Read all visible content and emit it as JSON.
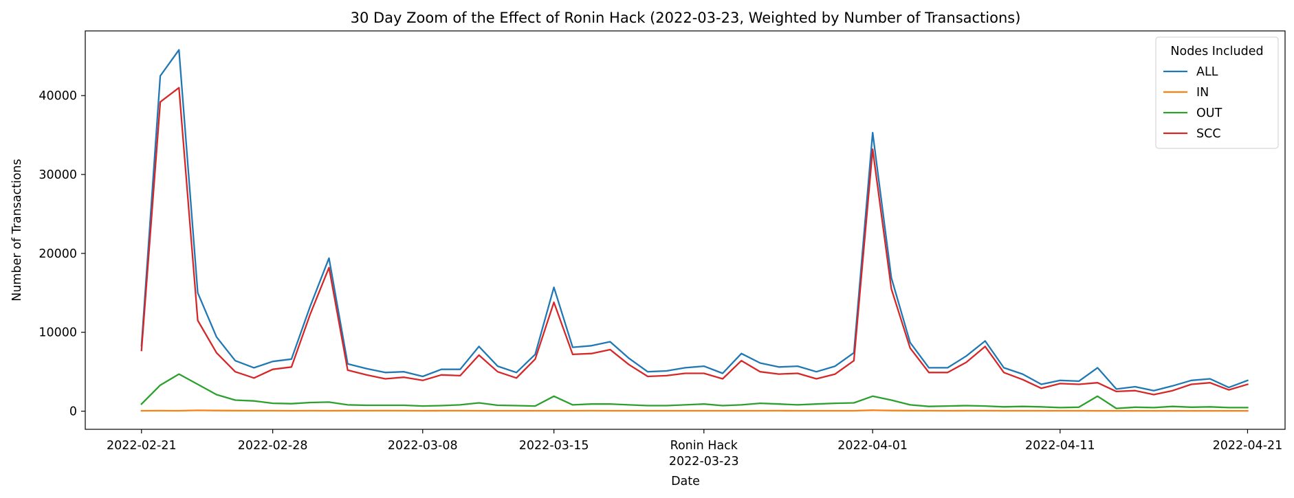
{
  "chart_data": {
    "type": "line",
    "title": "30 Day Zoom of the Effect of Ronin Hack (2022-03-23, Weighted by Number of Transactions)",
    "xlabel": "Date",
    "ylabel": "Number of Transactions",
    "x_start": "2022-02-21",
    "x_end": "2022-04-21",
    "xlim": [
      "2022-02-18",
      "2022-04-23"
    ],
    "ylim": [
      -2300,
      48200
    ],
    "grid": false,
    "x_ticks": [
      {
        "date": "2022-02-21",
        "label": "2022-02-21"
      },
      {
        "date": "2022-02-28",
        "label": "2022-02-28"
      },
      {
        "date": "2022-03-08",
        "label": "2022-03-08"
      },
      {
        "date": "2022-03-15",
        "label": "2022-03-15"
      },
      {
        "date": "2022-03-23",
        "label": "Ronin Hack",
        "label2": "2022-03-23"
      },
      {
        "date": "2022-04-01",
        "label": "2022-04-01"
      },
      {
        "date": "2022-04-11",
        "label": "2022-04-11"
      },
      {
        "date": "2022-04-21",
        "label": "2022-04-21"
      }
    ],
    "y_ticks": [
      {
        "value": 0,
        "label": "0"
      },
      {
        "value": 10000,
        "label": "10000"
      },
      {
        "value": 20000,
        "label": "20000"
      },
      {
        "value": 30000,
        "label": "30000"
      },
      {
        "value": 40000,
        "label": "40000"
      }
    ],
    "legend": {
      "title": "Nodes Included",
      "position": "upper right"
    },
    "x": [
      "2022-02-21",
      "2022-02-22",
      "2022-02-23",
      "2022-02-24",
      "2022-02-25",
      "2022-02-26",
      "2022-02-27",
      "2022-02-28",
      "2022-03-01",
      "2022-03-02",
      "2022-03-03",
      "2022-03-04",
      "2022-03-05",
      "2022-03-06",
      "2022-03-07",
      "2022-03-08",
      "2022-03-09",
      "2022-03-10",
      "2022-03-11",
      "2022-03-12",
      "2022-03-13",
      "2022-03-14",
      "2022-03-15",
      "2022-03-16",
      "2022-03-17",
      "2022-03-18",
      "2022-03-19",
      "2022-03-20",
      "2022-03-21",
      "2022-03-22",
      "2022-03-23",
      "2022-03-24",
      "2022-03-25",
      "2022-03-26",
      "2022-03-27",
      "2022-03-28",
      "2022-03-29",
      "2022-03-30",
      "2022-03-31",
      "2022-04-01",
      "2022-04-02",
      "2022-04-03",
      "2022-04-04",
      "2022-04-05",
      "2022-04-06",
      "2022-04-07",
      "2022-04-08",
      "2022-04-09",
      "2022-04-10",
      "2022-04-11",
      "2022-04-12",
      "2022-04-13",
      "2022-04-14",
      "2022-04-15",
      "2022-04-16",
      "2022-04-17",
      "2022-04-18",
      "2022-04-19",
      "2022-04-20",
      "2022-04-21"
    ],
    "series": [
      {
        "name": "ALL",
        "color": "#1f77b4",
        "values": [
          8300,
          42500,
          45800,
          15000,
          9400,
          6400,
          5500,
          6300,
          6600,
          13300,
          19400,
          6000,
          5400,
          4900,
          5000,
          4400,
          5300,
          5300,
          8200,
          5700,
          4900,
          7200,
          15700,
          8100,
          8300,
          8800,
          6700,
          5000,
          5100,
          5500,
          5700,
          4800,
          7300,
          6100,
          5600,
          5700,
          5000,
          5700,
          7400,
          35300,
          16900,
          8700,
          5500,
          5500,
          7000,
          8900,
          5500,
          4700,
          3400,
          3900,
          3800,
          5500,
          2800,
          3100,
          2600,
          3200,
          3900,
          4100,
          3000,
          3900
        ]
      },
      {
        "name": "IN",
        "color": "#ff7f0e",
        "values": [
          50,
          60,
          50,
          100,
          80,
          70,
          60,
          60,
          50,
          60,
          50,
          70,
          60,
          70,
          60,
          50,
          60,
          60,
          50,
          50,
          50,
          50,
          50,
          50,
          60,
          50,
          50,
          50,
          50,
          50,
          50,
          50,
          50,
          50,
          60,
          50,
          50,
          50,
          50,
          120,
          80,
          70,
          60,
          50,
          60,
          60,
          50,
          50,
          50,
          50,
          50,
          40,
          40,
          40,
          40,
          40,
          40,
          40,
          40,
          40
        ]
      },
      {
        "name": "OUT",
        "color": "#2ca02c",
        "values": [
          900,
          3300,
          4700,
          3400,
          2100,
          1400,
          1300,
          1000,
          950,
          1100,
          1150,
          800,
          750,
          750,
          750,
          650,
          700,
          800,
          1050,
          750,
          700,
          650,
          1900,
          800,
          900,
          900,
          800,
          700,
          700,
          800,
          900,
          700,
          800,
          1000,
          900,
          800,
          900,
          1000,
          1050,
          1900,
          1400,
          800,
          600,
          650,
          700,
          650,
          550,
          600,
          550,
          450,
          500,
          1900,
          350,
          500,
          450,
          600,
          500,
          550,
          450,
          450
        ]
      },
      {
        "name": "SCC",
        "color": "#d62728",
        "values": [
          7700,
          39200,
          41000,
          11500,
          7400,
          5000,
          4200,
          5300,
          5600,
          12300,
          18200,
          5200,
          4600,
          4100,
          4300,
          3900,
          4600,
          4500,
          7100,
          5000,
          4200,
          6600,
          13800,
          7200,
          7300,
          7800,
          5900,
          4400,
          4500,
          4800,
          4800,
          4100,
          6400,
          5000,
          4700,
          4800,
          4100,
          4700,
          6400,
          33200,
          15500,
          8000,
          4900,
          4900,
          6200,
          8200,
          4900,
          4000,
          2900,
          3500,
          3400,
          3600,
          2500,
          2600,
          2100,
          2600,
          3400,
          3600,
          2700,
          3400
        ]
      }
    ]
  }
}
